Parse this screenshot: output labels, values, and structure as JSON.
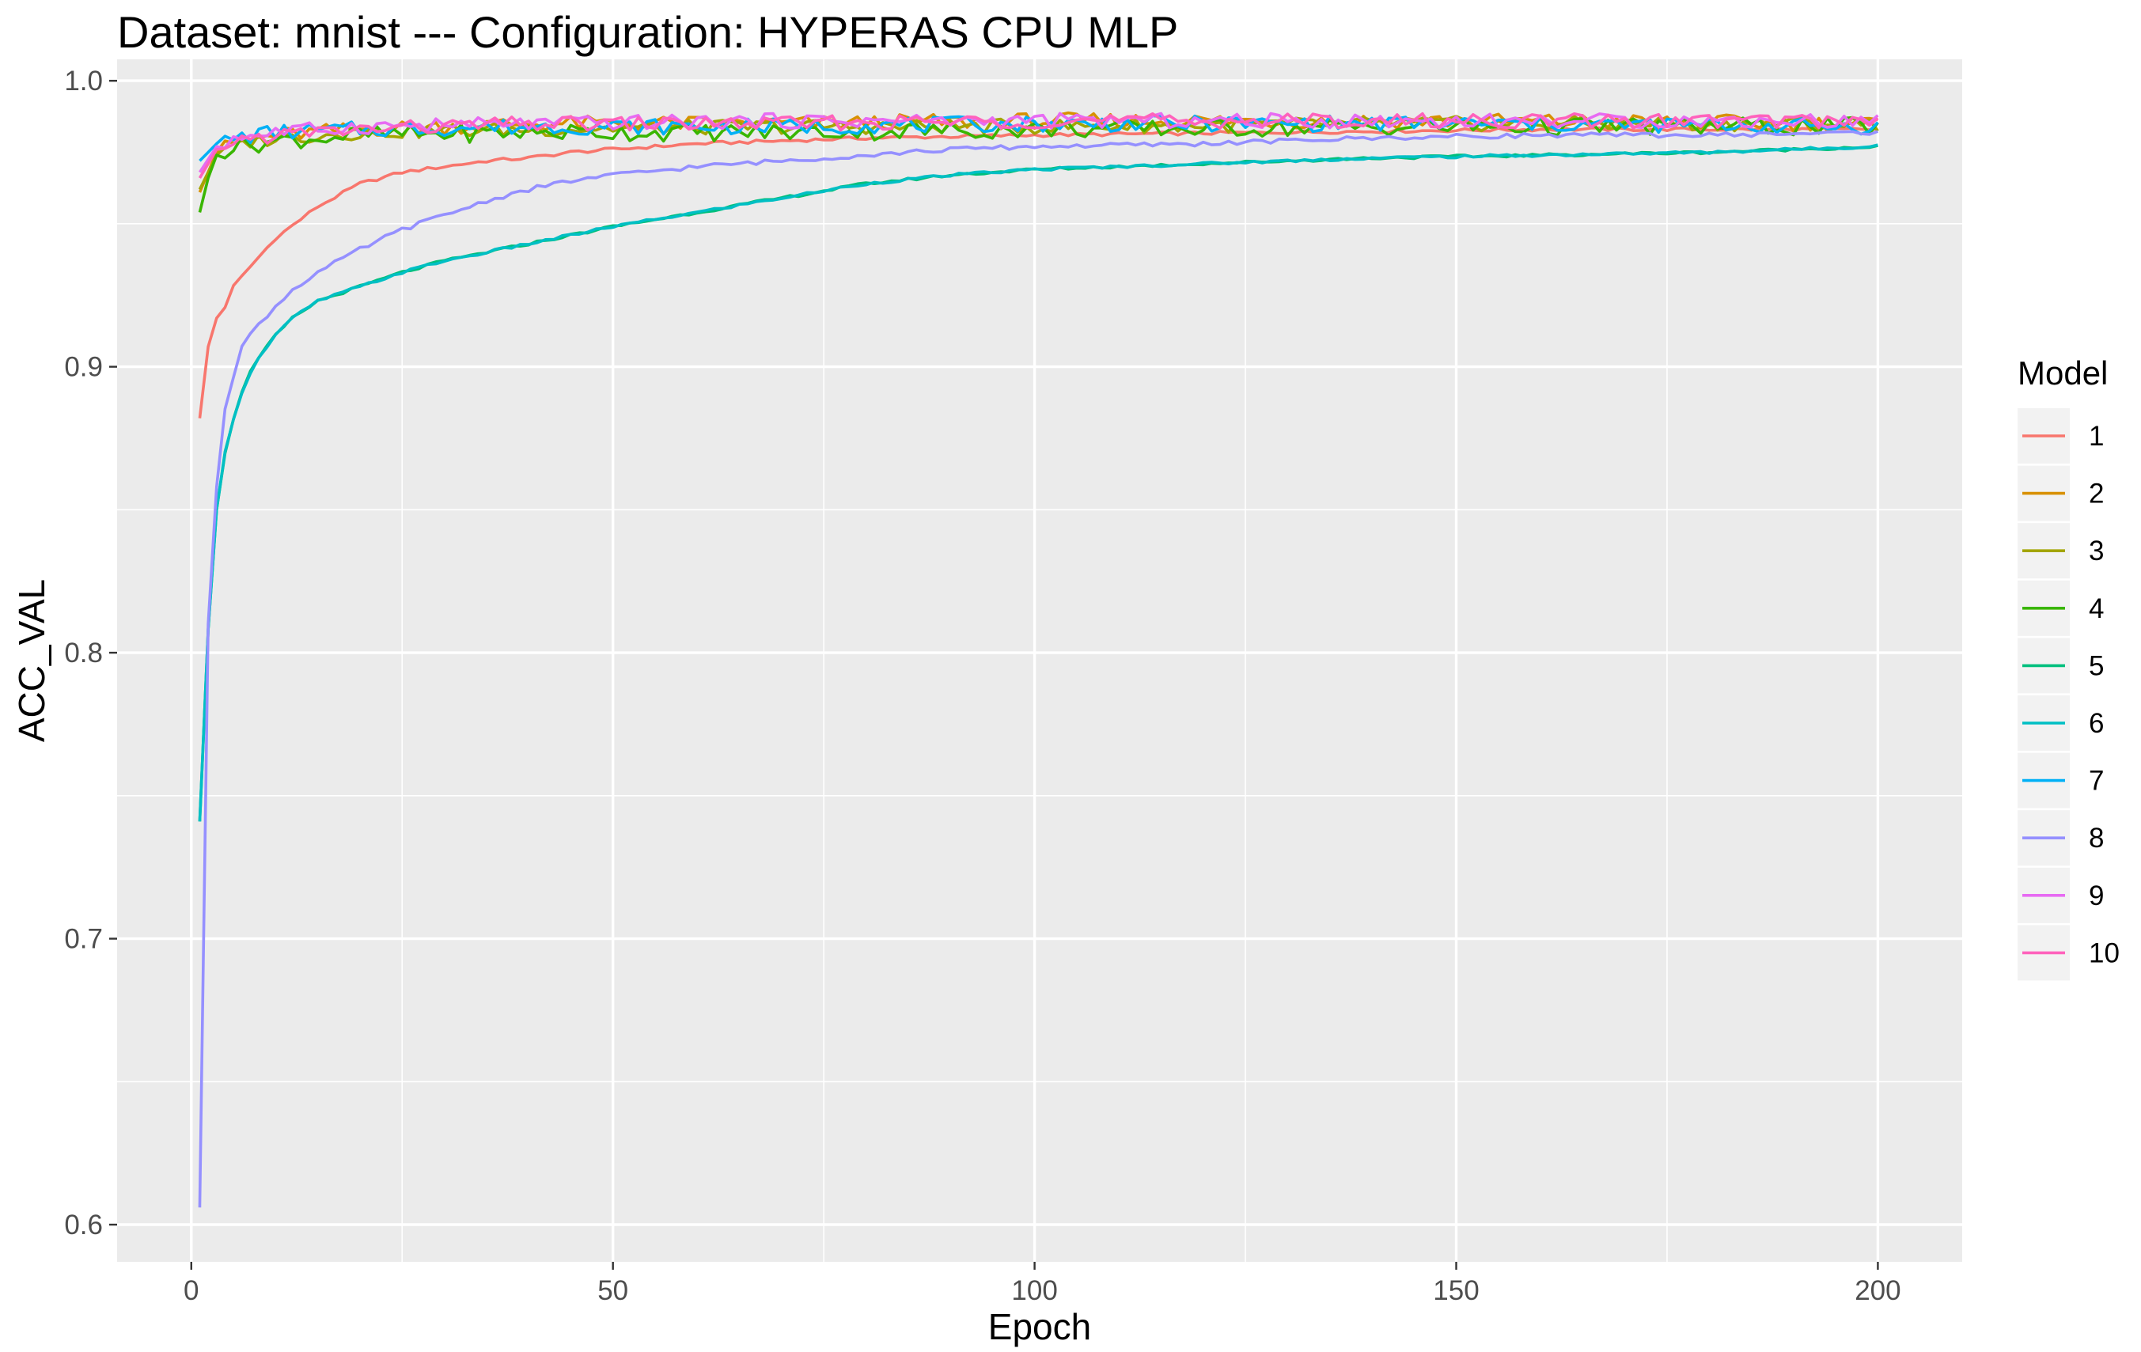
{
  "chart_data": {
    "type": "line",
    "title": "Dataset:  mnist  --- Configuration:  HYPERAS CPU MLP",
    "xlabel": "Epoch",
    "ylabel": "ACC_VAL",
    "xlim": [
      -8.8,
      210
    ],
    "ylim": [
      0.587,
      1.0075
    ],
    "x_ticks": [
      0,
      50,
      100,
      150,
      200
    ],
    "y_ticks": [
      0.6,
      0.7,
      0.8,
      0.9,
      1.0
    ],
    "x_tick_labels": [
      "0",
      "50",
      "100",
      "150",
      "200"
    ],
    "y_tick_labels": [
      "0.6",
      "0.7",
      "0.8",
      "0.9",
      "1.0"
    ],
    "grid": true,
    "legend_title": "Model",
    "legend_position": "right",
    "epochs": [
      1,
      200
    ],
    "series": [
      {
        "name": "1",
        "color": "#F8766D",
        "points": [
          [
            1,
            0.882
          ],
          [
            2,
            0.907
          ],
          [
            3,
            0.917
          ],
          [
            4,
            0.921
          ],
          [
            5,
            0.928
          ],
          [
            7,
            0.935
          ],
          [
            10,
            0.945
          ],
          [
            15,
            0.956
          ],
          [
            20,
            0.964
          ],
          [
            25,
            0.968
          ],
          [
            30,
            0.97
          ],
          [
            35,
            0.972
          ],
          [
            40,
            0.973
          ],
          [
            45,
            0.975
          ],
          [
            50,
            0.976
          ],
          [
            60,
            0.978
          ],
          [
            70,
            0.979
          ],
          [
            80,
            0.98
          ],
          [
            100,
            0.981
          ],
          [
            130,
            0.982
          ],
          [
            160,
            0.983
          ],
          [
            200,
            0.983
          ]
        ]
      },
      {
        "name": "2",
        "color": "#D89000",
        "points": [
          [
            1,
            0.961
          ],
          [
            3,
            0.975
          ],
          [
            5,
            0.978
          ],
          [
            10,
            0.981
          ],
          [
            20,
            0.983
          ],
          [
            40,
            0.985
          ],
          [
            70,
            0.985
          ],
          [
            100,
            0.986
          ],
          [
            150,
            0.986
          ],
          [
            200,
            0.985
          ]
        ]
      },
      {
        "name": "3",
        "color": "#A3A500",
        "points": [
          [
            1,
            0.962
          ],
          [
            3,
            0.974
          ],
          [
            5,
            0.978
          ],
          [
            10,
            0.98
          ],
          [
            20,
            0.982
          ],
          [
            40,
            0.983
          ],
          [
            70,
            0.984
          ],
          [
            100,
            0.984
          ],
          [
            150,
            0.985
          ],
          [
            200,
            0.985
          ]
        ]
      },
      {
        "name": "4",
        "color": "#39B600",
        "points": [
          [
            1,
            0.954
          ],
          [
            2,
            0.966
          ],
          [
            3,
            0.974
          ],
          [
            5,
            0.977
          ],
          [
            10,
            0.979
          ],
          [
            20,
            0.981
          ],
          [
            40,
            0.982
          ],
          [
            70,
            0.982
          ],
          [
            100,
            0.983
          ],
          [
            150,
            0.984
          ],
          [
            200,
            0.984
          ]
        ]
      },
      {
        "name": "5",
        "color": "#00BF7D",
        "points": [
          [
            1,
            0.741
          ],
          [
            2,
            0.808
          ],
          [
            3,
            0.85
          ],
          [
            4,
            0.87
          ],
          [
            5,
            0.882
          ],
          [
            6,
            0.891
          ],
          [
            7,
            0.898
          ],
          [
            8,
            0.903
          ],
          [
            10,
            0.911
          ],
          [
            12,
            0.917
          ],
          [
            15,
            0.923
          ],
          [
            20,
            0.928
          ],
          [
            25,
            0.933
          ],
          [
            30,
            0.937
          ],
          [
            40,
            0.943
          ],
          [
            50,
            0.949
          ],
          [
            60,
            0.954
          ],
          [
            70,
            0.959
          ],
          [
            80,
            0.964
          ],
          [
            90,
            0.967
          ],
          [
            100,
            0.969
          ],
          [
            120,
            0.971
          ],
          [
            140,
            0.973
          ],
          [
            160,
            0.974
          ],
          [
            180,
            0.975
          ],
          [
            200,
            0.977
          ]
        ]
      },
      {
        "name": "6",
        "color": "#00BFC4",
        "points": [
          [
            1,
            0.741
          ],
          [
            2,
            0.808
          ],
          [
            3,
            0.85
          ],
          [
            4,
            0.87
          ],
          [
            5,
            0.882
          ],
          [
            6,
            0.891
          ],
          [
            7,
            0.898
          ],
          [
            8,
            0.903
          ],
          [
            10,
            0.911
          ],
          [
            12,
            0.917
          ],
          [
            15,
            0.923
          ],
          [
            20,
            0.928
          ],
          [
            25,
            0.933
          ],
          [
            30,
            0.937
          ],
          [
            40,
            0.943
          ],
          [
            50,
            0.949
          ],
          [
            60,
            0.954
          ],
          [
            70,
            0.959
          ],
          [
            80,
            0.964
          ],
          [
            90,
            0.967
          ],
          [
            100,
            0.969
          ],
          [
            120,
            0.971
          ],
          [
            140,
            0.973
          ],
          [
            160,
            0.974
          ],
          [
            180,
            0.975
          ],
          [
            199,
            0.977
          ],
          [
            200,
            0.978
          ]
        ]
      },
      {
        "name": "7",
        "color": "#00B0F6",
        "points": [
          [
            1,
            0.972
          ],
          [
            3,
            0.978
          ],
          [
            5,
            0.98
          ],
          [
            10,
            0.982
          ],
          [
            20,
            0.983
          ],
          [
            40,
            0.984
          ],
          [
            70,
            0.984
          ],
          [
            100,
            0.985
          ],
          [
            150,
            0.985
          ],
          [
            200,
            0.984
          ]
        ]
      },
      {
        "name": "8",
        "color": "#9590FF",
        "points": [
          [
            1,
            0.606
          ],
          [
            2,
            0.81
          ],
          [
            3,
            0.858
          ],
          [
            4,
            0.886
          ],
          [
            5,
            0.897
          ],
          [
            6,
            0.907
          ],
          [
            7,
            0.911
          ],
          [
            8,
            0.915
          ],
          [
            10,
            0.921
          ],
          [
            12,
            0.927
          ],
          [
            15,
            0.933
          ],
          [
            20,
            0.941
          ],
          [
            25,
            0.948
          ],
          [
            30,
            0.953
          ],
          [
            35,
            0.958
          ],
          [
            40,
            0.962
          ],
          [
            45,
            0.965
          ],
          [
            50,
            0.967
          ],
          [
            60,
            0.97
          ],
          [
            70,
            0.972
          ],
          [
            80,
            0.974
          ],
          [
            90,
            0.976
          ],
          [
            100,
            0.977
          ],
          [
            120,
            0.978
          ],
          [
            140,
            0.98
          ],
          [
            160,
            0.981
          ],
          [
            180,
            0.981
          ],
          [
            200,
            0.982
          ]
        ]
      },
      {
        "name": "9",
        "color": "#E76BF3",
        "points": [
          [
            1,
            0.968
          ],
          [
            3,
            0.977
          ],
          [
            5,
            0.98
          ],
          [
            10,
            0.982
          ],
          [
            20,
            0.984
          ],
          [
            40,
            0.985
          ],
          [
            70,
            0.986
          ],
          [
            100,
            0.986
          ],
          [
            150,
            0.986
          ],
          [
            200,
            0.986
          ]
        ]
      },
      {
        "name": "10",
        "color": "#FF62BC",
        "points": [
          [
            1,
            0.966
          ],
          [
            3,
            0.976
          ],
          [
            5,
            0.979
          ],
          [
            10,
            0.981
          ],
          [
            20,
            0.983
          ],
          [
            40,
            0.985
          ],
          [
            70,
            0.985
          ],
          [
            100,
            0.986
          ],
          [
            150,
            0.986
          ],
          [
            200,
            0.986
          ]
        ]
      }
    ]
  }
}
